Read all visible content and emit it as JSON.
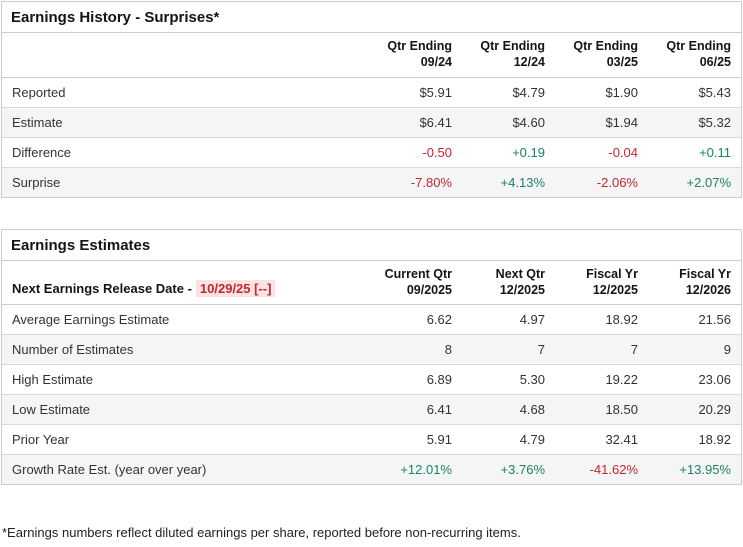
{
  "colors": {
    "positive": "#1d8067",
    "negative": "#c12832",
    "row_alt_bg": "#f5f5f5",
    "border": "#cccccc",
    "date_highlight_bg": "#fbe3e4"
  },
  "history": {
    "name": "earnings-history",
    "title": "Earnings History - Surprises*",
    "columns": [
      {
        "line1": "Qtr Ending",
        "line2": "09/24"
      },
      {
        "line1": "Qtr Ending",
        "line2": "12/24"
      },
      {
        "line1": "Qtr Ending",
        "line2": "03/25"
      },
      {
        "line1": "Qtr Ending",
        "line2": "06/25"
      }
    ],
    "rows": [
      {
        "label": "Reported",
        "values": [
          "$5.91",
          "$4.79",
          "$1.90",
          "$5.43"
        ],
        "tones": [
          "neutral",
          "neutral",
          "neutral",
          "neutral"
        ]
      },
      {
        "label": "Estimate",
        "values": [
          "$6.41",
          "$4.60",
          "$1.94",
          "$5.32"
        ],
        "tones": [
          "neutral",
          "neutral",
          "neutral",
          "neutral"
        ]
      },
      {
        "label": "Difference",
        "values": [
          "-0.50",
          "+0.19",
          "-0.04",
          "+0.11"
        ],
        "tones": [
          "negative",
          "positive",
          "negative",
          "positive"
        ]
      },
      {
        "label": "Surprise",
        "values": [
          "-7.80%",
          "+4.13%",
          "-2.06%",
          "+2.07%"
        ],
        "tones": [
          "negative",
          "positive",
          "negative",
          "positive"
        ]
      }
    ]
  },
  "estimates": {
    "name": "earnings-estimates",
    "title": "Earnings Estimates",
    "release_label": "Next Earnings Release Date -",
    "release_date": "10/29/25 [--]",
    "columns": [
      {
        "line1": "Current Qtr",
        "line2": "09/2025"
      },
      {
        "line1": "Next Qtr",
        "line2": "12/2025"
      },
      {
        "line1": "Fiscal Yr",
        "line2": "12/2025"
      },
      {
        "line1": "Fiscal Yr",
        "line2": "12/2026"
      }
    ],
    "rows": [
      {
        "label": "Average Earnings Estimate",
        "values": [
          "6.62",
          "4.97",
          "18.92",
          "21.56"
        ],
        "tones": [
          "neutral",
          "neutral",
          "neutral",
          "neutral"
        ]
      },
      {
        "label": "Number of Estimates",
        "values": [
          "8",
          "7",
          "7",
          "9"
        ],
        "tones": [
          "neutral",
          "neutral",
          "neutral",
          "neutral"
        ]
      },
      {
        "label": "High Estimate",
        "values": [
          "6.89",
          "5.30",
          "19.22",
          "23.06"
        ],
        "tones": [
          "neutral",
          "neutral",
          "neutral",
          "neutral"
        ]
      },
      {
        "label": "Low Estimate",
        "values": [
          "6.41",
          "4.68",
          "18.50",
          "20.29"
        ],
        "tones": [
          "neutral",
          "neutral",
          "neutral",
          "neutral"
        ]
      },
      {
        "label": "Prior Year",
        "values": [
          "5.91",
          "4.79",
          "32.41",
          "18.92"
        ],
        "tones": [
          "neutral",
          "neutral",
          "neutral",
          "neutral"
        ]
      },
      {
        "label": "Growth Rate Est. (year over year)",
        "values": [
          "+12.01%",
          "+3.76%",
          "-41.62%",
          "+13.95%"
        ],
        "tones": [
          "positive",
          "positive",
          "negative",
          "positive"
        ]
      }
    ]
  },
  "footnote": "*Earnings numbers reflect diluted earnings per share, reported before non-recurring items."
}
